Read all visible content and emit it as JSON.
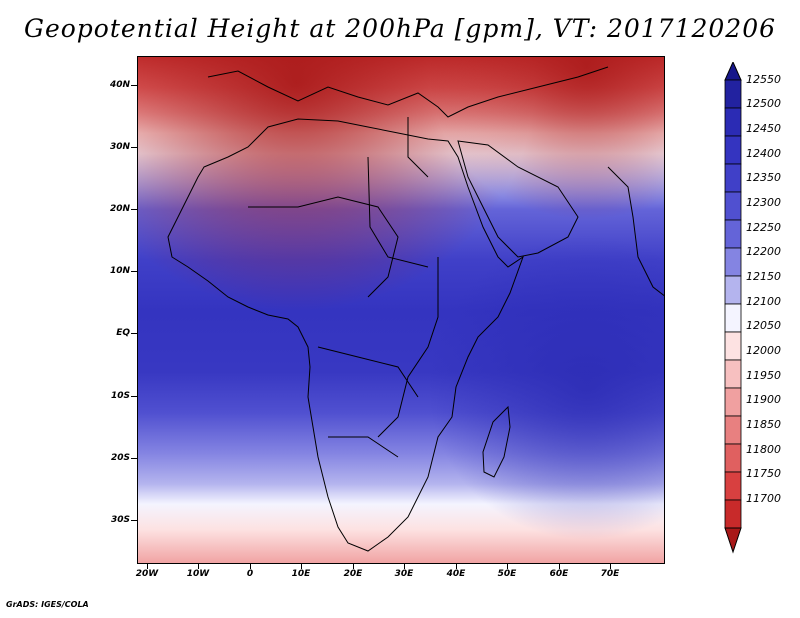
{
  "title": "Geopotential Height at 200hPa [gpm], VT: 2017120206",
  "footer": "GrADS: IGES/COLA",
  "map": {
    "lon_range": [
      -23,
      80
    ],
    "lat_range": [
      -37,
      45
    ],
    "lat_labels": [
      "40N",
      "30N",
      "20N",
      "10N",
      "EQ",
      "10S",
      "20S",
      "30S"
    ],
    "lon_labels": [
      "20W",
      "10W",
      "0",
      "10E",
      "20E",
      "30E",
      "40E",
      "50E",
      "60E",
      "70E"
    ]
  },
  "colorbar": {
    "levels": [
      "12550",
      "12500",
      "12450",
      "12400",
      "12350",
      "12300",
      "12250",
      "12200",
      "12150",
      "12100",
      "12050",
      "12000",
      "11950",
      "11900",
      "11850",
      "11800",
      "11750",
      "11700"
    ],
    "colors": [
      "#17178a",
      "#2222a0",
      "#2b2bb4",
      "#3434c0",
      "#4040c8",
      "#5050d0",
      "#6464d8",
      "#8484e2",
      "#b4b4ee",
      "#f4f4ff",
      "#fde2e2",
      "#f7c0c0",
      "#f0a0a0",
      "#e88080",
      "#e06060",
      "#d84040",
      "#c82a2a",
      "#a81818"
    ]
  }
}
